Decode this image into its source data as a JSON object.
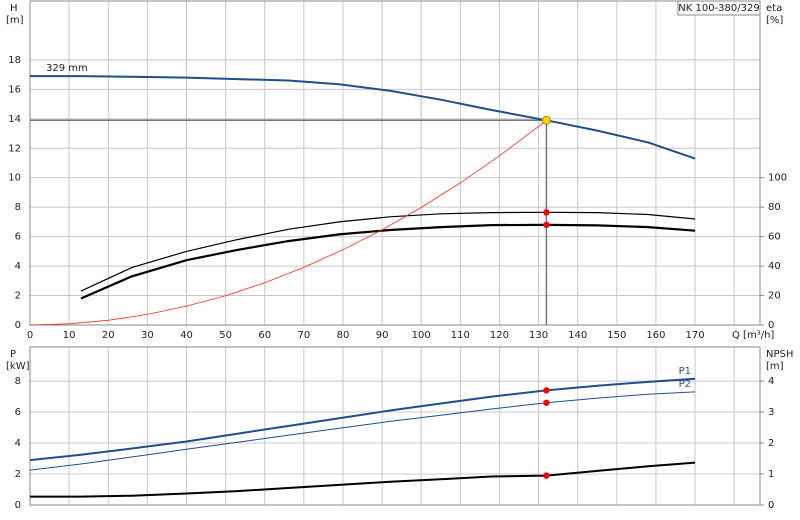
{
  "chart_data": [
    {
      "type": "line",
      "title": "NK 100-380/329",
      "ylabel": "H",
      "yunit": "[m]",
      "y2label": "eta",
      "y2unit": "[%]",
      "xlabel": "Q [m³/h]",
      "xlim": [
        0,
        186.6
      ],
      "xticks": [
        0,
        10,
        20,
        30,
        40,
        50,
        60,
        70,
        80,
        90,
        100,
        110,
        120,
        130,
        140,
        150,
        160,
        170,
        180
      ],
      "xtick_labels": [
        0,
        10,
        20,
        30,
        40,
        50,
        60,
        70,
        80,
        90,
        100,
        110,
        120,
        130,
        140,
        150,
        160,
        170
      ],
      "ylim": [
        0,
        22
      ],
      "yticks": [
        0,
        2,
        4,
        6,
        8,
        10,
        12,
        14,
        16,
        18
      ],
      "y2lim": [
        0,
        220
      ],
      "y2ticks": [
        0,
        20,
        40,
        60,
        80,
        100
      ],
      "grid": true,
      "series_label_pos": "start",
      "guide": true,
      "series": [
        {
          "name": "329 mm",
          "color": "#1f4e8c",
          "width": 2,
          "axis": "y",
          "x": [
            0,
            13,
            26,
            40,
            53,
            66,
            79,
            92,
            105,
            118,
            132,
            145,
            158,
            170
          ],
          "values": [
            16.9,
            16.9,
            16.85,
            16.8,
            16.7,
            16.6,
            16.35,
            15.9,
            15.3,
            14.6,
            13.9,
            13.2,
            12.4,
            11.3
          ]
        },
        {
          "color": "#000000",
          "width": 1.2,
          "axis": "y2",
          "x": [
            13,
            26,
            40,
            53,
            66,
            79,
            92,
            105,
            118,
            132,
            145,
            158,
            170
          ],
          "values": [
            23,
            39,
            50,
            58,
            65,
            70,
            73.5,
            75.5,
            76.3,
            76.5,
            76.3,
            75,
            72
          ]
        },
        {
          "color": "#000000",
          "width": 2.2,
          "axis": "y2",
          "x": [
            13,
            26,
            40,
            53,
            66,
            79,
            92,
            105,
            118,
            132,
            145,
            158,
            170
          ],
          "values": [
            18,
            33,
            44,
            51,
            57,
            61.5,
            64.5,
            66.5,
            67.8,
            68,
            67.6,
            66.5,
            64
          ]
        },
        {
          "color": "#ff2a1a",
          "width": 0.8,
          "axis": "y",
          "x": [
            0,
            10,
            20,
            30,
            40,
            50,
            60,
            70,
            80,
            90,
            100,
            110,
            120,
            130,
            132
          ],
          "values": [
            0,
            0.08,
            0.32,
            0.72,
            1.28,
            1.99,
            2.87,
            3.91,
            5.11,
            6.46,
            7.98,
            9.65,
            11.49,
            13.48,
            13.9
          ]
        }
      ],
      "markers": [
        {
          "x": 132,
          "y": 13.9,
          "axis": "y",
          "color": "#ffd400"
        },
        {
          "x": 132,
          "y": 76.5,
          "axis": "y2",
          "color": "#ff0000"
        },
        {
          "x": 132,
          "y": 68,
          "axis": "y2",
          "color": "#ff0000"
        }
      ]
    },
    {
      "type": "line",
      "ylabel": "P",
      "yunit": "[kW]",
      "y2label": "NPSH",
      "y2unit": "[m]",
      "xlim": [
        0,
        186.6
      ],
      "xticks": [
        0,
        10,
        20,
        30,
        40,
        50,
        60,
        70,
        80,
        90,
        100,
        110,
        120,
        130,
        140,
        150,
        160,
        170,
        180
      ],
      "ylim": [
        0,
        10.2
      ],
      "yticks": [
        0,
        2,
        4,
        6,
        8
      ],
      "y2lim": [
        0,
        5.1
      ],
      "y2ticks": [
        0,
        1,
        2,
        3,
        4
      ],
      "grid": true,
      "series_label_pos": "end",
      "series": [
        {
          "name": "P1",
          "color": "#1f4e8c",
          "width": 2,
          "axis": "y",
          "x": [
            0,
            13,
            26,
            40,
            53,
            66,
            79,
            92,
            105,
            118,
            132,
            145,
            158,
            170
          ],
          "values": [
            2.9,
            3.25,
            3.65,
            4.1,
            4.6,
            5.1,
            5.6,
            6.1,
            6.55,
            7,
            7.4,
            7.7,
            7.95,
            8.15
          ]
        },
        {
          "name": "P2",
          "color": "#1f4e8c",
          "width": 1,
          "axis": "y",
          "x": [
            0,
            13,
            26,
            40,
            53,
            66,
            79,
            92,
            105,
            118,
            132,
            145,
            158,
            170
          ],
          "values": [
            2.25,
            2.65,
            3.1,
            3.6,
            4.05,
            4.5,
            4.95,
            5.4,
            5.8,
            6.2,
            6.6,
            6.9,
            7.15,
            7.3
          ]
        },
        {
          "color": "#000000",
          "width": 2,
          "axis": "y2",
          "x": [
            0,
            13,
            26,
            40,
            53,
            66,
            79,
            92,
            105,
            118,
            132,
            145,
            158,
            170
          ],
          "values": [
            0.27,
            0.27,
            0.3,
            0.37,
            0.45,
            0.55,
            0.65,
            0.75,
            0.83,
            0.92,
            0.95,
            1.1,
            1.25,
            1.37
          ]
        }
      ],
      "markers": [
        {
          "x": 132,
          "y": 7.4,
          "axis": "y",
          "color": "#ff0000"
        },
        {
          "x": 132,
          "y": 6.6,
          "axis": "y",
          "color": "#ff0000"
        },
        {
          "x": 132,
          "y": 0.95,
          "axis": "y2",
          "color": "#ff0000"
        }
      ]
    }
  ]
}
